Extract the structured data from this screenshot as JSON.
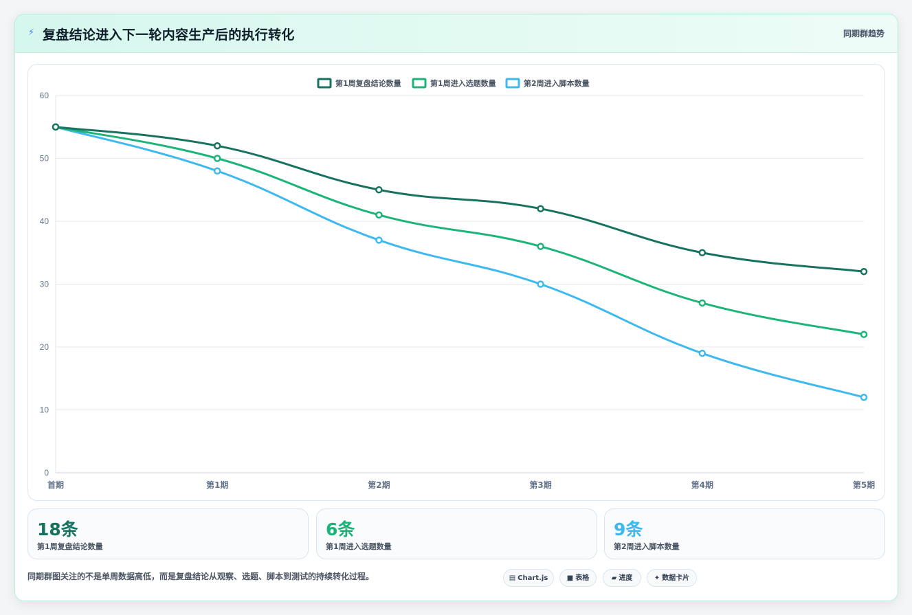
{
  "header": {
    "title": "复盘结论进入下一轮内容生产后的执行转化",
    "link": "同期群趋势",
    "icon": "lightning-icon"
  },
  "chart_data": {
    "type": "line",
    "categories": [
      "首期",
      "第1期",
      "第2期",
      "第3期",
      "第4期",
      "第5期"
    ],
    "series": [
      {
        "name": "第1周复盘结论数量",
        "color": "#17735f",
        "values": [
          55,
          52,
          45,
          42,
          35,
          32
        ]
      },
      {
        "name": "第1周进入选题数量",
        "color": "#1db47a",
        "values": [
          55,
          50,
          41,
          36,
          27,
          22
        ]
      },
      {
        "name": "第2周进入脚本数量",
        "color": "#3db9f0",
        "values": [
          55,
          48,
          37,
          30,
          19,
          12
        ]
      }
    ],
    "ylim": [
      0,
      60
    ],
    "yticks": [
      0,
      10,
      20,
      30,
      40,
      50,
      60
    ],
    "grid": true,
    "legend_position": "top-center",
    "smooth": true
  },
  "stats": [
    {
      "value": "18条",
      "label": "第1周复盘结论数量",
      "color": "#17735f"
    },
    {
      "value": "6条",
      "label": "第1周进入选题数量",
      "color": "#1db47a"
    },
    {
      "value": "9条",
      "label": "第2周进入脚本数量",
      "color": "#3db9f0"
    }
  ],
  "footer": {
    "note": "同期群图关注的不是单周数据高低，而是复盘结论从观察、选题、脚本到测试的持续转化过程。",
    "pills": [
      {
        "label": "Chart.js",
        "icon": "chart-icon",
        "glyph": "▤"
      },
      {
        "label": "表格",
        "icon": "table-icon",
        "glyph": "■"
      },
      {
        "label": "进度",
        "icon": "progress-icon",
        "glyph": "▰"
      },
      {
        "label": "数据卡片",
        "icon": "sparkle-icon",
        "glyph": "✦"
      }
    ]
  }
}
